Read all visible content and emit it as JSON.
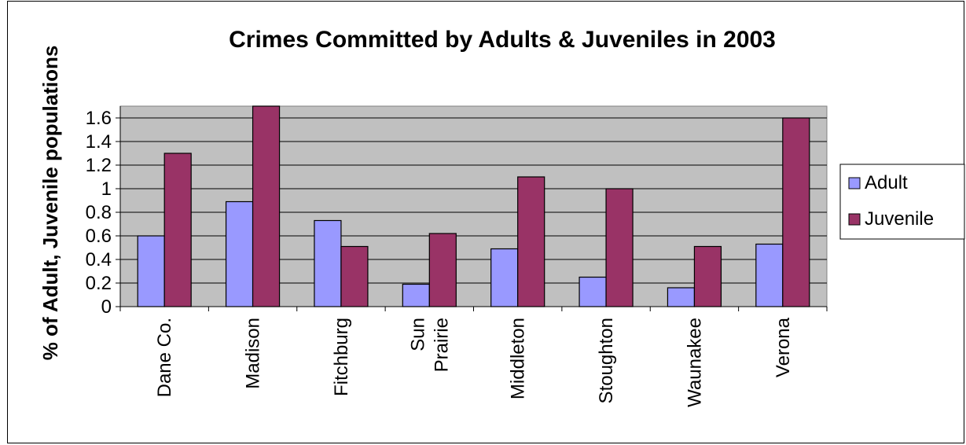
{
  "chart_data": {
    "type": "bar",
    "title": "Crimes Committed by Adults & Juveniles in 2003",
    "xlabel": "",
    "ylabel": "% of Adult, Juvenile populations",
    "ylim": [
      0,
      1.7
    ],
    "yticks": [
      "0",
      "0.2",
      "0.4",
      "0.6",
      "0.8",
      "1",
      "1.2",
      "1.4",
      "1.6"
    ],
    "ytick_values": [
      0,
      0.2,
      0.4,
      0.6,
      0.8,
      1.0,
      1.2,
      1.4,
      1.6
    ],
    "categories": [
      "Dane Co.",
      "Madison",
      "Fitchburg",
      "Sun Prairie",
      "Middleton",
      "Stoughton",
      "Waunakee",
      "Verona"
    ],
    "category_lines": [
      [
        "Dane Co."
      ],
      [
        "Madison"
      ],
      [
        "Fitchburg"
      ],
      [
        "Sun",
        "Prairie"
      ],
      [
        "Middleton"
      ],
      [
        "Stoughton"
      ],
      [
        "Waunakee"
      ],
      [
        "Verona"
      ]
    ],
    "series": [
      {
        "name": "Adult",
        "color": "#9999FF",
        "values": [
          0.6,
          0.89,
          0.73,
          0.19,
          0.49,
          0.25,
          0.16,
          0.53
        ]
      },
      {
        "name": "Juvenile",
        "color": "#993366",
        "values": [
          1.3,
          1.7,
          0.51,
          0.62,
          1.1,
          1.0,
          0.51,
          1.6
        ]
      }
    ],
    "plot_background": "#C0C0C0",
    "grid": true,
    "legend": "right"
  }
}
